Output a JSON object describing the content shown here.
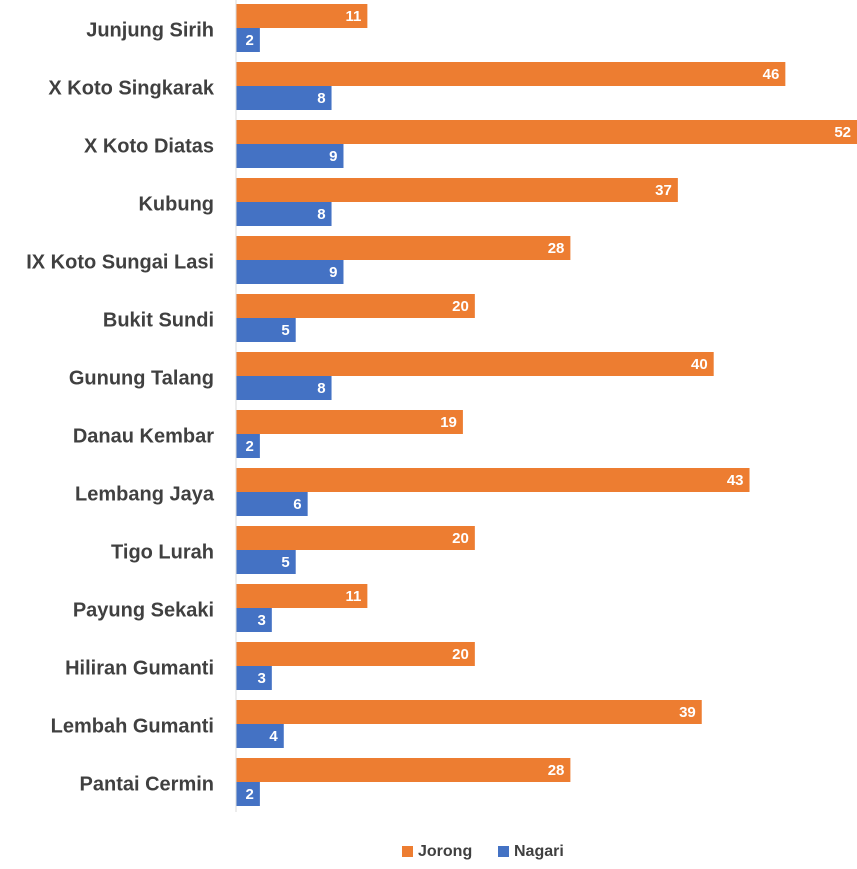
{
  "chart_data": {
    "type": "bar",
    "orientation": "horizontal",
    "title": "",
    "xlabel": "",
    "ylabel": "",
    "categories": [
      "Junjung Sirih",
      "X Koto Singkarak",
      "X Koto Diatas",
      "Kubung",
      "IX Koto Sungai Lasi",
      "Bukit Sundi",
      "Gunung Talang",
      "Danau Kembar",
      "Lembang Jaya",
      "Tigo Lurah",
      "Payung Sekaki",
      "Hiliran Gumanti",
      "Lembah Gumanti",
      "Pantai Cermin"
    ],
    "series": [
      {
        "name": "Jorong",
        "color": "#ED7D31",
        "values": [
          11,
          46,
          52,
          37,
          28,
          20,
          40,
          19,
          43,
          20,
          11,
          20,
          39,
          28
        ]
      },
      {
        "name": "Nagari",
        "color": "#4472C4",
        "values": [
          2,
          8,
          9,
          8,
          9,
          5,
          8,
          2,
          6,
          5,
          3,
          3,
          4,
          2
        ]
      }
    ],
    "xlim": [
      0,
      52
    ],
    "grid": false,
    "data_labels": true,
    "legend_position": "bottom"
  },
  "colors": {
    "label_text": "#404040",
    "bar_label_text": "#FFFFFF",
    "axis_line": "#D9D9D9"
  }
}
